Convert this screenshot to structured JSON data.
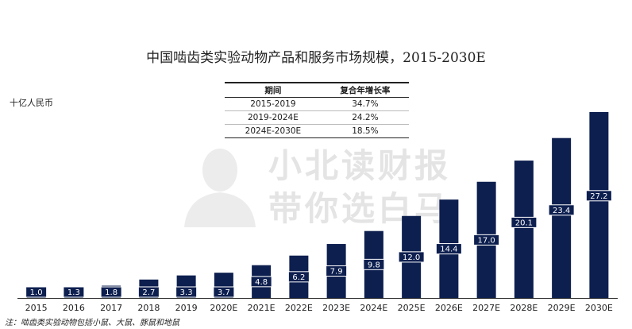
{
  "title": "中国啮齿类实验动物产品和服务市场规模，2015-2030E",
  "unit_label": "十亿人民币",
  "note": "注：啮齿类实验动物包括小鼠、大鼠、豚鼠和地鼠",
  "watermark": {
    "line1": "小北读财报",
    "line2": "带你选白马"
  },
  "cagr_table": {
    "headers": [
      "期间",
      "复合年增长率"
    ],
    "rows": [
      [
        "2015-2019",
        "34.7%"
      ],
      [
        "2019-2024E",
        "24.2%"
      ],
      [
        "2024E-2030E",
        "18.5%"
      ]
    ]
  },
  "colors": {
    "bar": "#0d1f4f",
    "label_box": "#0d1f4f",
    "label_text": "#ffffff",
    "watermark": "#e4e4e4"
  },
  "chart_data": {
    "type": "bar",
    "title": "中国啮齿类实验动物产品和服务市场规模，2015-2030E",
    "ylabel": "十亿人民币",
    "xlabel": "",
    "categories": [
      "2015",
      "2016",
      "2017",
      "2018",
      "2019",
      "2020E",
      "2021E",
      "2022E",
      "2023E",
      "2024E",
      "2025E",
      "2026E",
      "2027E",
      "2028E",
      "2029E",
      "2030E"
    ],
    "values": [
      1.0,
      1.3,
      1.8,
      2.7,
      3.3,
      3.7,
      4.8,
      6.2,
      7.9,
      9.8,
      12.0,
      14.4,
      17.0,
      20.1,
      23.4,
      27.2
    ],
    "data_labels": [
      "1.0",
      "1.3",
      "1.8",
      "2.7",
      "3.3",
      "3.7",
      "4.8",
      "6.2",
      "7.9",
      "9.8",
      "12.0",
      "14.4",
      "17.0",
      "20.1",
      "23.4",
      "27.2"
    ],
    "ylim": [
      0,
      27.2
    ],
    "grid": false,
    "legend": "none"
  }
}
